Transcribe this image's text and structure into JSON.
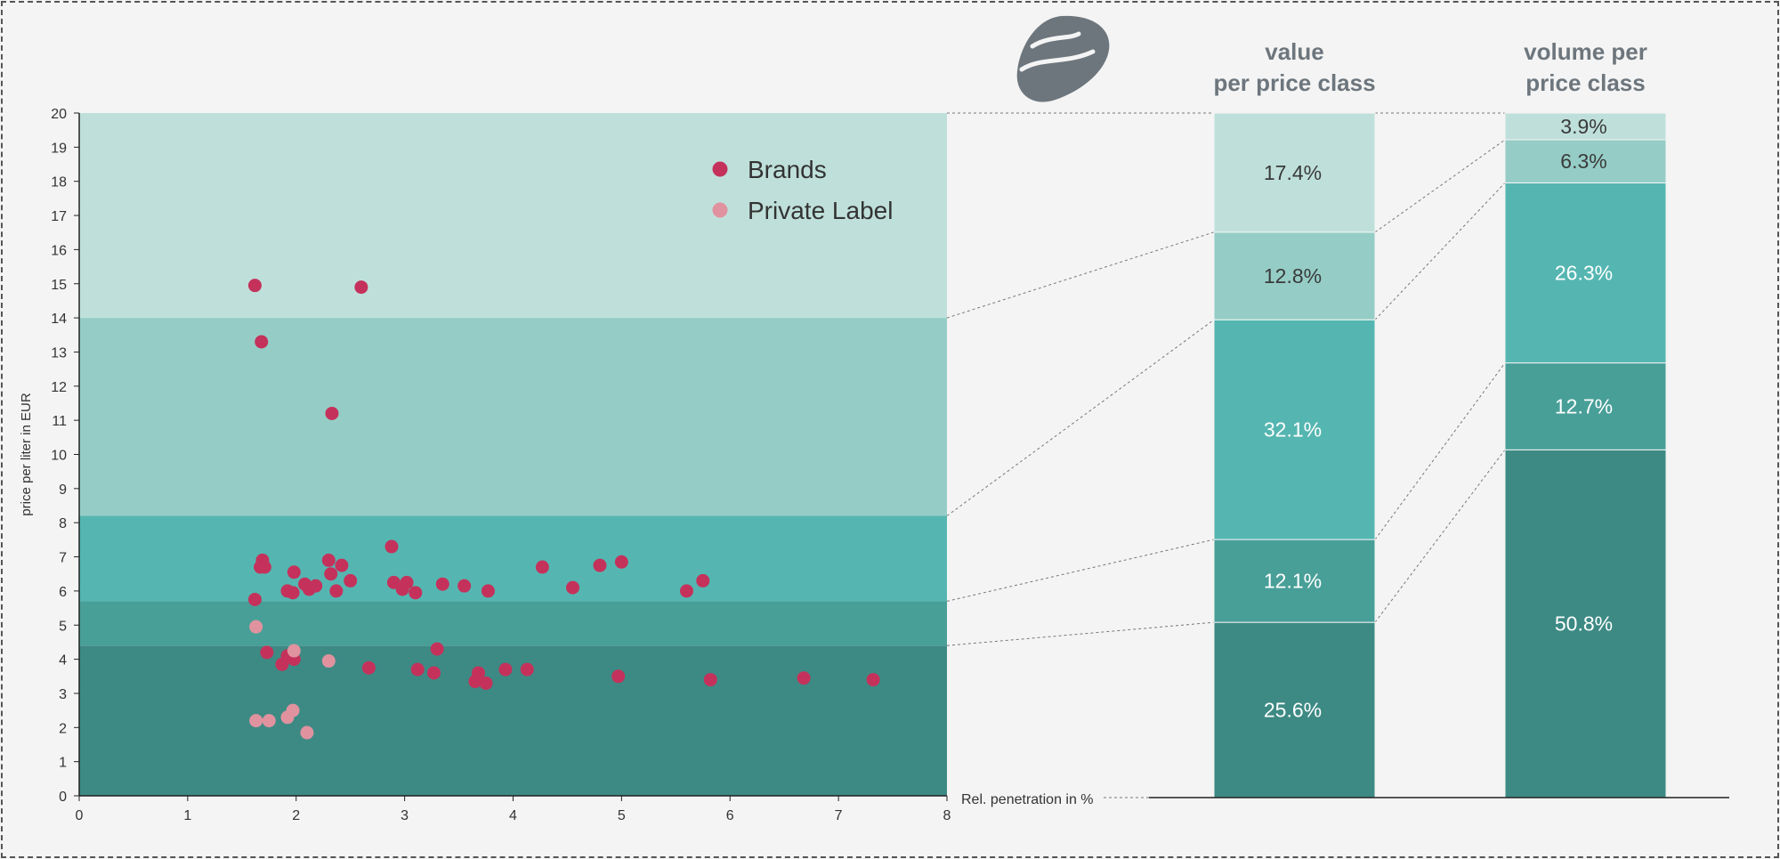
{
  "colors": {
    "band_1": "#3d8a84",
    "band_2": "#489f98",
    "band_3": "#55b6b1",
    "band_4": "#95cdc6",
    "band_5": "#bfe0da",
    "brands": "#c4325c",
    "private_label": "#e0929f",
    "logo": "#6d767d"
  },
  "logo": {
    "icon": "stylized-leaf-logo-icon"
  },
  "chart_data": [
    {
      "type": "scatter",
      "xlabel": "Rel. penetration in %",
      "ylabel": "price per liter in EUR",
      "xlim": [
        0,
        8
      ],
      "ylim": [
        0,
        20
      ],
      "x_ticks": [
        "0",
        "1",
        "2",
        "3",
        "4",
        "5",
        "6",
        "7",
        "8"
      ],
      "y_ticks": [
        "0",
        "1",
        "2",
        "3",
        "4",
        "5",
        "6",
        "7",
        "8",
        "9",
        "10",
        "11",
        "12",
        "13",
        "14",
        "15",
        "16",
        "17",
        "18",
        "19",
        "20"
      ],
      "grid": false,
      "legend_position": "top-right",
      "price_class_bands": [
        {
          "from": 0,
          "to": 4.4
        },
        {
          "from": 4.4,
          "to": 5.7
        },
        {
          "from": 5.7,
          "to": 8.2
        },
        {
          "from": 8.2,
          "to": 14.0
        },
        {
          "from": 14.0,
          "to": 20.0
        }
      ],
      "series": [
        {
          "name": "Brands",
          "points": [
            [
              1.62,
              14.95
            ],
            [
              2.6,
              14.9
            ],
            [
              1.68,
              13.3
            ],
            [
              2.33,
              11.2
            ],
            [
              2.88,
              7.3
            ],
            [
              1.69,
              6.9
            ],
            [
              2.3,
              6.9
            ],
            [
              1.67,
              6.7
            ],
            [
              1.71,
              6.7
            ],
            [
              2.42,
              6.75
            ],
            [
              4.27,
              6.7
            ],
            [
              4.8,
              6.75
            ],
            [
              5.0,
              6.85
            ],
            [
              1.98,
              6.55
            ],
            [
              2.32,
              6.5
            ],
            [
              2.5,
              6.3
            ],
            [
              2.9,
              6.25
            ],
            [
              3.02,
              6.25
            ],
            [
              5.75,
              6.3
            ],
            [
              2.08,
              6.2
            ],
            [
              2.18,
              6.15
            ],
            [
              3.35,
              6.2
            ],
            [
              3.55,
              6.15
            ],
            [
              4.55,
              6.1
            ],
            [
              2.12,
              6.05
            ],
            [
              2.98,
              6.05
            ],
            [
              1.92,
              6.0
            ],
            [
              2.37,
              6.0
            ],
            [
              3.1,
              5.95
            ],
            [
              3.77,
              6.0
            ],
            [
              5.6,
              6.0
            ],
            [
              1.97,
              5.95
            ],
            [
              1.62,
              5.75
            ],
            [
              1.73,
              4.2
            ],
            [
              3.3,
              4.3
            ],
            [
              1.92,
              4.1
            ],
            [
              1.98,
              4.0
            ],
            [
              1.87,
              3.85
            ],
            [
              2.67,
              3.75
            ],
            [
              3.12,
              3.7
            ],
            [
              3.27,
              3.6
            ],
            [
              3.68,
              3.6
            ],
            [
              3.93,
              3.7
            ],
            [
              4.13,
              3.7
            ],
            [
              3.65,
              3.35
            ],
            [
              3.75,
              3.3
            ],
            [
              4.97,
              3.5
            ],
            [
              5.82,
              3.4
            ],
            [
              6.68,
              3.45
            ],
            [
              7.32,
              3.4
            ]
          ]
        },
        {
          "name": "Private Label",
          "points": [
            [
              1.63,
              4.95
            ],
            [
              1.98,
              4.25
            ],
            [
              2.3,
              3.95
            ],
            [
              1.97,
              2.5
            ],
            [
              1.92,
              2.3
            ],
            [
              1.63,
              2.2
            ],
            [
              1.75,
              2.2
            ],
            [
              2.1,
              1.85
            ]
          ]
        }
      ]
    },
    {
      "type": "bar",
      "stacked": true,
      "normalized": true,
      "categories": [
        "value\nper price class",
        "volume per\nprice class"
      ],
      "segment_order": "bottom-to-top",
      "series": [
        {
          "values": [
            25.6,
            50.8
          ]
        },
        {
          "values": [
            12.1,
            12.7
          ]
        },
        {
          "values": [
            32.1,
            26.3
          ]
        },
        {
          "values": [
            12.8,
            6.3
          ]
        },
        {
          "values": [
            17.4,
            3.9
          ]
        }
      ],
      "value_labels": [
        [
          "25.6%",
          "12.1%",
          "32.1%",
          "12.8%",
          "17.4%"
        ],
        [
          "50.8%",
          "12.7%",
          "26.3%",
          "6.3%",
          "3.9%"
        ]
      ]
    }
  ]
}
